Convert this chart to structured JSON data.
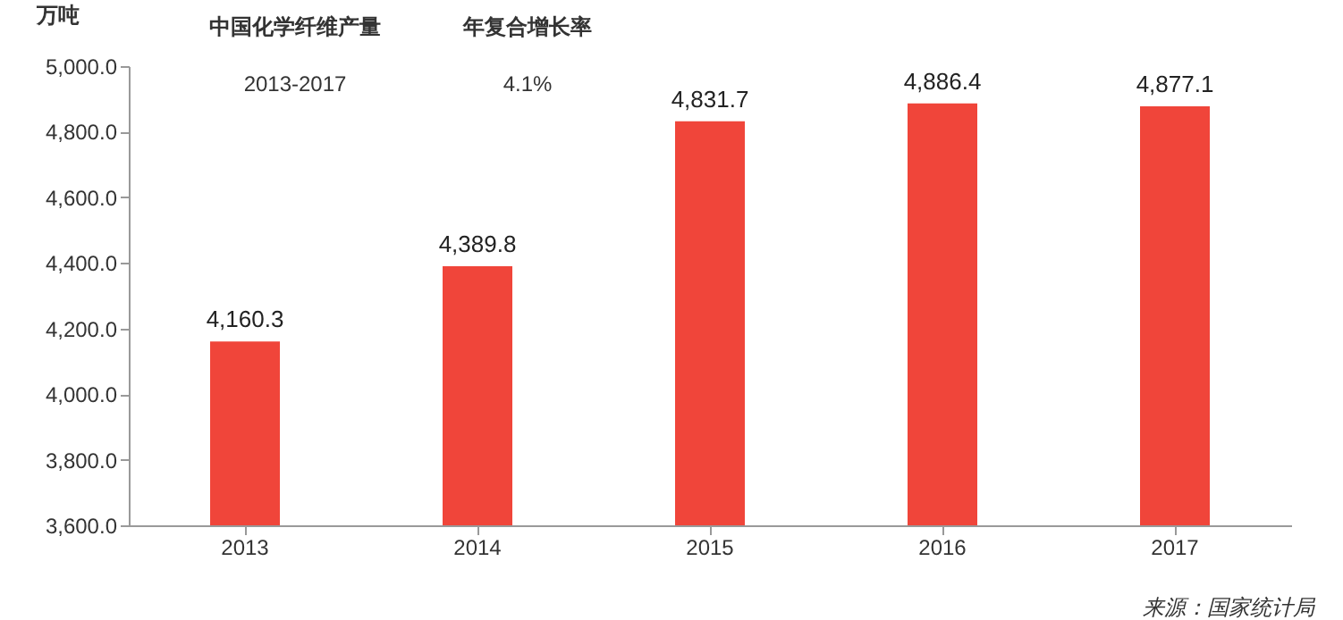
{
  "chart_data": {
    "type": "bar",
    "ylabel": "万吨",
    "categories": [
      "2013",
      "2014",
      "2015",
      "2016",
      "2017"
    ],
    "values": [
      4160.3,
      4389.8,
      4831.7,
      4886.4,
      4877.1
    ],
    "value_labels": [
      "4,160.3",
      "4,389.8",
      "4,831.7",
      "4,886.4",
      "4,877.1"
    ],
    "color": "#f0453a",
    "ylim": [
      3600,
      5000
    ],
    "yticks": [
      {
        "value": 3600,
        "label": "3,600.0"
      },
      {
        "value": 3800,
        "label": "3,800.0"
      },
      {
        "value": 4000,
        "label": "4,000.0"
      },
      {
        "value": 4200,
        "label": "4,200.0"
      },
      {
        "value": 4400,
        "label": "4,400.0"
      },
      {
        "value": 4600,
        "label": "4,600.0"
      },
      {
        "value": 4800,
        "label": "4,800.0"
      },
      {
        "value": 5000,
        "label": "5,000.0"
      }
    ],
    "grid": false,
    "annotations": [
      "中国化学纤维产量",
      "年复合增长率",
      "2013-2017",
      "4.1%",
      "来源：国家统计局"
    ]
  }
}
